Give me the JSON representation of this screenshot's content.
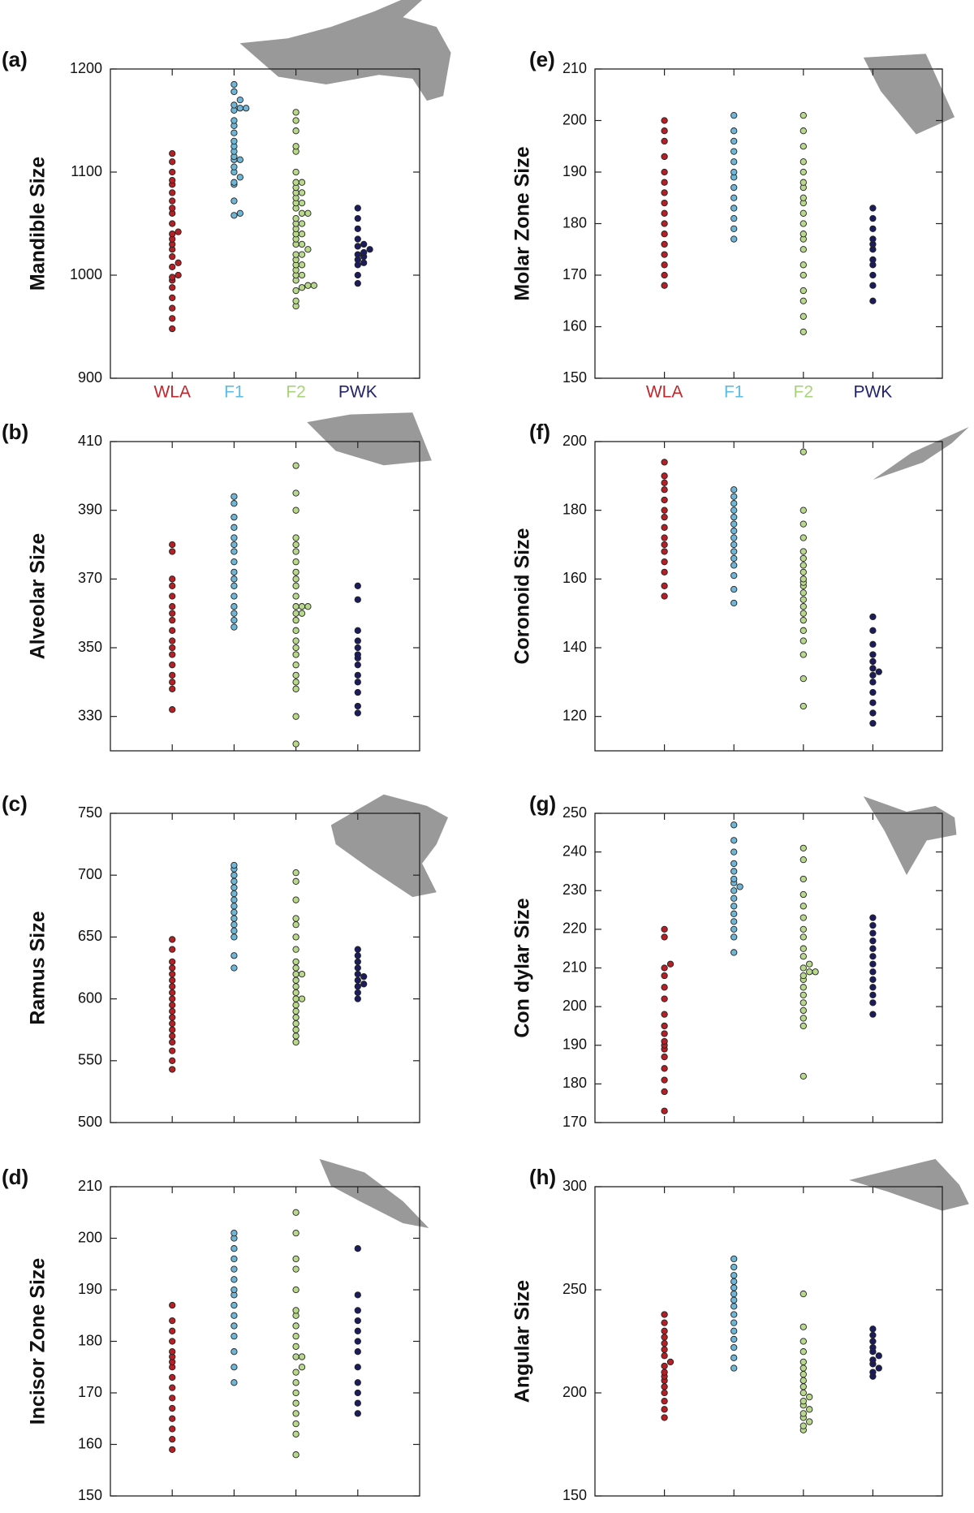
{
  "groups": [
    {
      "name": "WLA",
      "color": "#b32025",
      "label_color": "#c0272d"
    },
    {
      "name": "F1",
      "color": "#6fb5d6",
      "label_color": "#5bbbe0"
    },
    {
      "name": "F2",
      "color": "#b8d98c",
      "label_color": "#a9d37a"
    },
    {
      "name": "PWK",
      "color": "#1c1c5c",
      "label_color": "#23236b"
    }
  ],
  "chart_data": [
    {
      "type": "dot",
      "label": "(a)",
      "ylabel": "Mandible Size",
      "show_categories": true,
      "ylim": [
        900,
        1200
      ],
      "yticks": [
        900,
        1000,
        1100,
        1200
      ],
      "series": [
        {
          "values": [
            948,
            958,
            968,
            978,
            988,
            995,
            998,
            1000,
            1008,
            1012,
            1018,
            1025,
            1030,
            1035,
            1040,
            1042,
            1050,
            1060,
            1065,
            1072,
            1080,
            1088,
            1092,
            1100,
            1110,
            1118
          ]
        },
        {
          "values": [
            1058,
            1060,
            1072,
            1088,
            1090,
            1095,
            1100,
            1105,
            1112,
            1112,
            1115,
            1120,
            1125,
            1130,
            1138,
            1145,
            1150,
            1160,
            1162,
            1162,
            1165,
            1170,
            1178,
            1185
          ]
        },
        {
          "values": [
            970,
            975,
            985,
            988,
            990,
            990,
            995,
            1000,
            1000,
            1005,
            1010,
            1010,
            1015,
            1020,
            1020,
            1025,
            1030,
            1030,
            1035,
            1040,
            1040,
            1045,
            1050,
            1050,
            1055,
            1060,
            1060,
            1065,
            1070,
            1070,
            1075,
            1080,
            1080,
            1085,
            1090,
            1090,
            1100,
            1120,
            1125,
            1140,
            1150,
            1158
          ]
        },
        {
          "values": [
            992,
            1000,
            1010,
            1012,
            1015,
            1018,
            1020,
            1022,
            1025,
            1028,
            1030,
            1035,
            1045,
            1055,
            1065
          ]
        }
      ]
    },
    {
      "type": "dot",
      "label": "(b)",
      "ylabel": "Alveolar Size",
      "show_categories": false,
      "ylim": [
        320,
        410
      ],
      "yticks": [
        330,
        350,
        370,
        390,
        410
      ],
      "series": [
        {
          "values": [
            332,
            338,
            340,
            342,
            345,
            348,
            350,
            352,
            355,
            358,
            360,
            362,
            365,
            368,
            370,
            378,
            380
          ]
        },
        {
          "values": [
            356,
            358,
            360,
            362,
            365,
            368,
            370,
            372,
            375,
            378,
            380,
            382,
            385,
            388,
            392,
            394
          ]
        },
        {
          "values": [
            322,
            330,
            338,
            340,
            342,
            345,
            348,
            350,
            352,
            355,
            358,
            360,
            360,
            362,
            362,
            362,
            365,
            368,
            370,
            372,
            375,
            378,
            380,
            382,
            390,
            395,
            403
          ]
        },
        {
          "values": [
            331,
            333,
            337,
            340,
            342,
            345,
            347,
            348,
            350,
            352,
            355,
            364,
            368
          ]
        }
      ]
    },
    {
      "type": "dot",
      "label": "(c)",
      "ylabel": "Ramus Size",
      "show_categories": false,
      "ylim": [
        500,
        750
      ],
      "yticks": [
        500,
        550,
        600,
        650,
        700,
        750
      ],
      "series": [
        {
          "values": [
            543,
            550,
            558,
            565,
            570,
            575,
            580,
            585,
            590,
            595,
            600,
            605,
            610,
            615,
            620,
            625,
            630,
            640,
            648
          ]
        },
        {
          "values": [
            625,
            635,
            650,
            655,
            660,
            665,
            670,
            675,
            680,
            685,
            690,
            695,
            700,
            705,
            708
          ]
        },
        {
          "values": [
            565,
            570,
            575,
            580,
            585,
            590,
            595,
            600,
            600,
            605,
            610,
            615,
            620,
            620,
            625,
            630,
            640,
            650,
            660,
            665,
            680,
            695,
            702
          ]
        },
        {
          "values": [
            600,
            605,
            610,
            612,
            615,
            618,
            620,
            625,
            630,
            635,
            640
          ]
        }
      ]
    },
    {
      "type": "dot",
      "label": "(d)",
      "ylabel": "Incisor Zone Size",
      "show_categories": false,
      "ylim": [
        150,
        210
      ],
      "yticks": [
        150,
        160,
        170,
        180,
        190,
        200,
        210
      ],
      "series": [
        {
          "values": [
            159,
            161,
            163,
            165,
            167,
            169,
            171,
            173,
            175,
            176,
            177,
            178,
            180,
            182,
            184,
            187
          ]
        },
        {
          "values": [
            172,
            175,
            178,
            181,
            183,
            185,
            187,
            189,
            190,
            192,
            194,
            196,
            198,
            200,
            201
          ]
        },
        {
          "values": [
            158,
            162,
            164,
            166,
            168,
            170,
            172,
            174,
            175,
            177,
            177,
            179,
            181,
            183,
            185,
            186,
            190,
            194,
            196,
            201,
            205
          ]
        },
        {
          "values": [
            166,
            168,
            170,
            172,
            175,
            178,
            180,
            182,
            184,
            186,
            189,
            198
          ]
        }
      ]
    },
    {
      "type": "dot",
      "label": "(e)",
      "ylabel": "Molar Zone Size",
      "show_categories": true,
      "ylim": [
        150,
        210
      ],
      "yticks": [
        150,
        160,
        170,
        180,
        190,
        200,
        210
      ],
      "series": [
        {
          "values": [
            168,
            170,
            172,
            174,
            176,
            178,
            180,
            182,
            184,
            186,
            188,
            190,
            193,
            196,
            198,
            200
          ]
        },
        {
          "values": [
            177,
            179,
            181,
            183,
            185,
            187,
            189,
            190,
            192,
            194,
            196,
            198,
            201
          ]
        },
        {
          "values": [
            159,
            162,
            165,
            167,
            170,
            172,
            175,
            177,
            178,
            180,
            182,
            184,
            185,
            187,
            188,
            190,
            192,
            195,
            198,
            201
          ]
        },
        {
          "values": [
            165,
            168,
            170,
            172,
            173,
            175,
            176,
            177,
            179,
            181,
            183
          ]
        }
      ]
    },
    {
      "type": "dot",
      "label": "(f)",
      "ylabel": "Coronoid Size",
      "show_categories": false,
      "ylim": [
        110,
        200
      ],
      "yticks": [
        120,
        140,
        160,
        180,
        200
      ],
      "series": [
        {
          "values": [
            155,
            158,
            162,
            165,
            168,
            170,
            172,
            175,
            178,
            180,
            183,
            186,
            188,
            190,
            194
          ]
        },
        {
          "values": [
            153,
            157,
            161,
            164,
            166,
            168,
            170,
            172,
            174,
            176,
            178,
            180,
            182,
            184,
            186
          ]
        },
        {
          "values": [
            123,
            131,
            138,
            142,
            145,
            148,
            150,
            152,
            154,
            156,
            158,
            159,
            160,
            162,
            164,
            166,
            168,
            172,
            176,
            180,
            197
          ]
        },
        {
          "values": [
            118,
            121,
            124,
            127,
            130,
            132,
            133,
            134,
            136,
            138,
            141,
            145,
            149
          ]
        }
      ]
    },
    {
      "type": "dot",
      "label": "(g)",
      "ylabel": "Con dylar Size",
      "show_categories": false,
      "ylim": [
        170,
        250
      ],
      "yticks": [
        170,
        180,
        190,
        200,
        210,
        220,
        230,
        240,
        250
      ],
      "series": [
        {
          "values": [
            173,
            178,
            181,
            184,
            187,
            189,
            190,
            191,
            193,
            195,
            198,
            202,
            205,
            208,
            210,
            211,
            218,
            220
          ]
        },
        {
          "values": [
            214,
            218,
            220,
            222,
            224,
            226,
            228,
            230,
            231,
            232,
            233,
            235,
            237,
            240,
            243,
            247
          ]
        },
        {
          "values": [
            182,
            195,
            197,
            199,
            201,
            203,
            205,
            207,
            208,
            209,
            209,
            210,
            211,
            213,
            215,
            218,
            220,
            223,
            226,
            229,
            233,
            238,
            241
          ]
        },
        {
          "values": [
            198,
            201,
            203,
            205,
            207,
            209,
            211,
            213,
            215,
            217,
            219,
            221,
            223
          ]
        }
      ]
    },
    {
      "type": "dot",
      "label": "(h)",
      "ylabel": "Angular Size",
      "show_categories": false,
      "ylim": [
        150,
        300
      ],
      "yticks": [
        150,
        200,
        250,
        300
      ],
      "series": [
        {
          "values": [
            188,
            192,
            196,
            200,
            203,
            206,
            208,
            210,
            213,
            215,
            218,
            221,
            224,
            227,
            230,
            234,
            238
          ]
        },
        {
          "values": [
            212,
            217,
            222,
            226,
            230,
            234,
            238,
            242,
            245,
            248,
            251,
            254,
            257,
            261,
            265
          ]
        },
        {
          "values": [
            182,
            184,
            186,
            188,
            190,
            192,
            194,
            196,
            198,
            200,
            203,
            206,
            209,
            212,
            215,
            220,
            225,
            232,
            248
          ]
        },
        {
          "values": [
            208,
            210,
            212,
            214,
            216,
            218,
            220,
            222,
            225,
            228,
            231
          ]
        }
      ]
    }
  ]
}
